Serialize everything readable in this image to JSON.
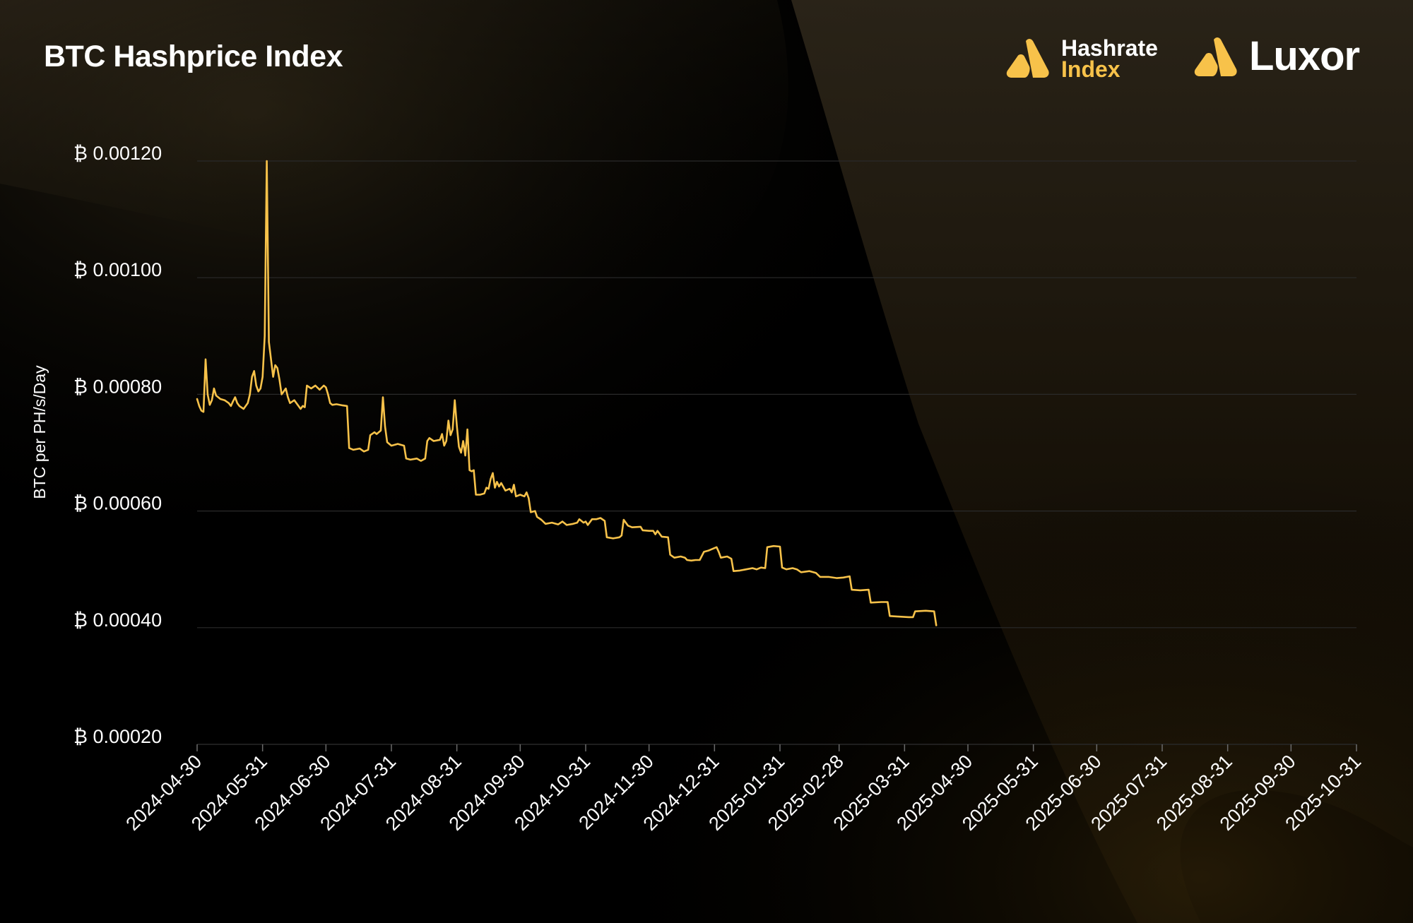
{
  "header": {
    "title": "BTC Hashprice Index"
  },
  "logos": {
    "hashrate_index_line1": "Hashrate",
    "hashrate_index_line2": "Index",
    "luxor": "Luxor"
  },
  "colors": {
    "background": "#000000",
    "line": "#f7c24a",
    "accent": "#f7c24a",
    "grid": "#2a2a2a",
    "text": "#ffffff"
  },
  "chart_data": {
    "type": "line",
    "title": "BTC Hashprice Index",
    "ylabel": "BTC per PH/s/Day",
    "xlabel": "",
    "ylim": [
      0.0002,
      0.0012
    ],
    "y_ticks": [
      0.0012,
      0.001,
      0.0008,
      0.0006,
      0.0004,
      0.0002
    ],
    "y_tick_labels": [
      "₿ 0.00120",
      "₿ 0.00100",
      "₿ 0.00080",
      "₿ 0.00060",
      "₿ 0.00040",
      "₿ 0.00020"
    ],
    "x_range": [
      "2024-04-30",
      "2025-10-31"
    ],
    "x_tick_labels": [
      "2024-04-30",
      "2024-05-31",
      "2024-06-30",
      "2024-07-31",
      "2024-08-31",
      "2024-09-30",
      "2024-10-31",
      "2024-11-30",
      "2024-12-31",
      "2025-01-31",
      "2025-02-28",
      "2025-03-31",
      "2025-04-30",
      "2025-05-31",
      "2025-06-30",
      "2025-07-31",
      "2025-08-31",
      "2025-09-30",
      "2025-10-31"
    ],
    "grid": "horizontal",
    "legend": "none",
    "series": [
      {
        "points": [
          [
            "2024-04-30",
            0.000792
          ],
          [
            "2024-05-01",
            0.00078
          ],
          [
            "2024-05-02",
            0.000772
          ],
          [
            "2024-05-03",
            0.00077
          ],
          [
            "2024-05-04",
            0.00086
          ],
          [
            "2024-05-05",
            0.0008
          ],
          [
            "2024-05-06",
            0.000782
          ],
          [
            "2024-05-07",
            0.00079
          ],
          [
            "2024-05-08",
            0.00081
          ],
          [
            "2024-05-09",
            0.000798
          ],
          [
            "2024-05-10",
            0.000795
          ],
          [
            "2024-05-11",
            0.000792
          ],
          [
            "2024-05-13",
            0.00079
          ],
          [
            "2024-05-15",
            0.000785
          ],
          [
            "2024-05-16",
            0.00078
          ],
          [
            "2024-05-17",
            0.000788
          ],
          [
            "2024-05-18",
            0.000795
          ],
          [
            "2024-05-19",
            0.000785
          ],
          [
            "2024-05-20",
            0.00078
          ],
          [
            "2024-05-22",
            0.000775
          ],
          [
            "2024-05-24",
            0.000785
          ],
          [
            "2024-05-25",
            0.0008
          ],
          [
            "2024-05-26",
            0.00083
          ],
          [
            "2024-05-27",
            0.00084
          ],
          [
            "2024-05-28",
            0.000815
          ],
          [
            "2024-05-29",
            0.000805
          ],
          [
            "2024-05-30",
            0.00081
          ],
          [
            "2024-05-31",
            0.00083
          ],
          [
            "2024-06-01",
            0.0009
          ],
          [
            "2024-06-02",
            0.0012
          ],
          [
            "2024-06-03",
            0.00089
          ],
          [
            "2024-06-04",
            0.00086
          ],
          [
            "2024-06-05",
            0.00083
          ],
          [
            "2024-06-06",
            0.00085
          ],
          [
            "2024-06-07",
            0.000845
          ],
          [
            "2024-06-08",
            0.000825
          ],
          [
            "2024-06-09",
            0.0008
          ],
          [
            "2024-06-10",
            0.000805
          ],
          [
            "2024-06-11",
            0.00081
          ],
          [
            "2024-06-12",
            0.000795
          ],
          [
            "2024-06-13",
            0.000785
          ],
          [
            "2024-06-15",
            0.00079
          ],
          [
            "2024-06-17",
            0.00078
          ],
          [
            "2024-06-18",
            0.000775
          ],
          [
            "2024-06-19",
            0.00078
          ],
          [
            "2024-06-20",
            0.000778
          ],
          [
            "2024-06-21",
            0.000815
          ],
          [
            "2024-06-23",
            0.00081
          ],
          [
            "2024-06-25",
            0.000815
          ],
          [
            "2024-06-27",
            0.000808
          ],
          [
            "2024-06-29",
            0.000815
          ],
          [
            "2024-06-30",
            0.000812
          ],
          [
            "2024-07-01",
            0.0008
          ],
          [
            "2024-07-02",
            0.000785
          ],
          [
            "2024-07-03",
            0.000782
          ],
          [
            "2024-07-05",
            0.000783
          ],
          [
            "2024-07-08",
            0.000781
          ],
          [
            "2024-07-10",
            0.00078
          ],
          [
            "2024-07-11",
            0.000708
          ],
          [
            "2024-07-13",
            0.000705
          ],
          [
            "2024-07-16",
            0.000707
          ],
          [
            "2024-07-18",
            0.000702
          ],
          [
            "2024-07-20",
            0.000705
          ],
          [
            "2024-07-21",
            0.00073
          ],
          [
            "2024-07-23",
            0.000735
          ],
          [
            "2024-07-24",
            0.000732
          ],
          [
            "2024-07-26",
            0.000738
          ],
          [
            "2024-07-27",
            0.000795
          ],
          [
            "2024-07-28",
            0.000745
          ],
          [
            "2024-07-29",
            0.000718
          ],
          [
            "2024-07-31",
            0.000712
          ],
          [
            "2024-08-03",
            0.000715
          ],
          [
            "2024-08-06",
            0.000712
          ],
          [
            "2024-08-07",
            0.00069
          ],
          [
            "2024-08-09",
            0.000688
          ],
          [
            "2024-08-12",
            0.00069
          ],
          [
            "2024-08-14",
            0.000686
          ],
          [
            "2024-08-16",
            0.00069
          ],
          [
            "2024-08-17",
            0.00072
          ],
          [
            "2024-08-18",
            0.000725
          ],
          [
            "2024-08-20",
            0.00072
          ],
          [
            "2024-08-23",
            0.000722
          ],
          [
            "2024-08-24",
            0.000732
          ],
          [
            "2024-08-25",
            0.000712
          ],
          [
            "2024-08-26",
            0.00072
          ],
          [
            "2024-08-27",
            0.000755
          ],
          [
            "2024-08-28",
            0.00073
          ],
          [
            "2024-08-29",
            0.00074
          ],
          [
            "2024-08-30",
            0.00079
          ],
          [
            "2024-08-31",
            0.000745
          ],
          [
            "2024-09-01",
            0.00071
          ],
          [
            "2024-09-02",
            0.0007
          ],
          [
            "2024-09-03",
            0.00072
          ],
          [
            "2024-09-04",
            0.000695
          ],
          [
            "2024-09-05",
            0.00074
          ],
          [
            "2024-09-06",
            0.00067
          ],
          [
            "2024-09-07",
            0.000668
          ],
          [
            "2024-09-08",
            0.00067
          ],
          [
            "2024-09-09",
            0.000628
          ],
          [
            "2024-09-11",
            0.000628
          ],
          [
            "2024-09-13",
            0.00063
          ],
          [
            "2024-09-14",
            0.00064
          ],
          [
            "2024-09-15",
            0.000638
          ],
          [
            "2024-09-16",
            0.000655
          ],
          [
            "2024-09-17",
            0.000665
          ],
          [
            "2024-09-18",
            0.00064
          ],
          [
            "2024-09-19",
            0.00065
          ],
          [
            "2024-09-20",
            0.000642
          ],
          [
            "2024-09-21",
            0.000648
          ],
          [
            "2024-09-23",
            0.000635
          ],
          [
            "2024-09-25",
            0.000638
          ],
          [
            "2024-09-26",
            0.000632
          ],
          [
            "2024-09-27",
            0.000645
          ],
          [
            "2024-09-28",
            0.000625
          ],
          [
            "2024-09-30",
            0.000628
          ],
          [
            "2024-10-02",
            0.000625
          ],
          [
            "2024-10-03",
            0.000632
          ],
          [
            "2024-10-04",
            0.000622
          ],
          [
            "2024-10-05",
            0.000598
          ],
          [
            "2024-10-07",
            0.0006
          ],
          [
            "2024-10-08",
            0.00059
          ],
          [
            "2024-10-10",
            0.000585
          ],
          [
            "2024-10-12",
            0.000578
          ],
          [
            "2024-10-15",
            0.00058
          ],
          [
            "2024-10-18",
            0.000577
          ],
          [
            "2024-10-20",
            0.000582
          ],
          [
            "2024-10-22",
            0.000576
          ],
          [
            "2024-10-25",
            0.000578
          ],
          [
            "2024-10-27",
            0.00058
          ],
          [
            "2024-10-28",
            0.000586
          ],
          [
            "2024-10-30",
            0.00058
          ],
          [
            "2024-10-31",
            0.000582
          ],
          [
            "2024-11-01",
            0.000576
          ],
          [
            "2024-11-03",
            0.000586
          ],
          [
            "2024-11-05",
            0.000586
          ],
          [
            "2024-11-07",
            0.000588
          ],
          [
            "2024-11-09",
            0.000583
          ],
          [
            "2024-11-10",
            0.000555
          ],
          [
            "2024-11-13",
            0.000553
          ],
          [
            "2024-11-16",
            0.000555
          ],
          [
            "2024-11-17",
            0.000558
          ],
          [
            "2024-11-18",
            0.000585
          ],
          [
            "2024-11-20",
            0.000575
          ],
          [
            "2024-11-22",
            0.000572
          ],
          [
            "2024-11-26",
            0.000573
          ],
          [
            "2024-11-27",
            0.000567
          ],
          [
            "2024-11-30",
            0.000566
          ],
          [
            "2024-12-02",
            0.000566
          ],
          [
            "2024-12-03",
            0.00056
          ],
          [
            "2024-12-04",
            0.000566
          ],
          [
            "2024-12-06",
            0.000556
          ],
          [
            "2024-12-09",
            0.000555
          ],
          [
            "2024-12-10",
            0.000525
          ],
          [
            "2024-12-12",
            0.00052
          ],
          [
            "2024-12-15",
            0.000522
          ],
          [
            "2024-12-17",
            0.00052
          ],
          [
            "2024-12-18",
            0.000516
          ],
          [
            "2024-12-20",
            0.000515
          ],
          [
            "2024-12-22",
            0.000516
          ],
          [
            "2024-12-24",
            0.000516
          ],
          [
            "2024-12-26",
            0.00053
          ],
          [
            "2024-12-28",
            0.000532
          ],
          [
            "2024-12-30",
            0.000535
          ],
          [
            "2025-01-01",
            0.000538
          ],
          [
            "2025-01-02",
            0.00053
          ],
          [
            "2025-01-03",
            0.00052
          ],
          [
            "2025-01-06",
            0.000522
          ],
          [
            "2025-01-08",
            0.000518
          ],
          [
            "2025-01-09",
            0.000497
          ],
          [
            "2025-01-12",
            0.000498
          ],
          [
            "2025-01-15",
            0.0005
          ],
          [
            "2025-01-18",
            0.000502
          ],
          [
            "2025-01-20",
            0.0005
          ],
          [
            "2025-01-22",
            0.000503
          ],
          [
            "2025-01-24",
            0.000502
          ],
          [
            "2025-01-25",
            0.000538
          ],
          [
            "2025-01-28",
            0.00054
          ],
          [
            "2025-01-31",
            0.000539
          ],
          [
            "2025-02-01",
            0.000503
          ],
          [
            "2025-02-03",
            0.0005
          ],
          [
            "2025-02-06",
            0.000502
          ],
          [
            "2025-02-08",
            0.0005
          ],
          [
            "2025-02-10",
            0.000495
          ],
          [
            "2025-02-14",
            0.000497
          ],
          [
            "2025-02-17",
            0.000494
          ],
          [
            "2025-02-19",
            0.000487
          ],
          [
            "2025-02-23",
            0.000487
          ],
          [
            "2025-02-27",
            0.000485
          ],
          [
            "2025-03-02",
            0.000486
          ],
          [
            "2025-03-05",
            0.000488
          ],
          [
            "2025-03-06",
            0.000465
          ],
          [
            "2025-03-10",
            0.000464
          ],
          [
            "2025-03-14",
            0.000465
          ],
          [
            "2025-03-15",
            0.000443
          ],
          [
            "2025-03-20",
            0.000444
          ],
          [
            "2025-03-23",
            0.000444
          ],
          [
            "2025-03-24",
            0.00042
          ],
          [
            "2025-03-28",
            0.000419
          ],
          [
            "2025-04-02",
            0.000418
          ],
          [
            "2025-04-04",
            0.000418
          ],
          [
            "2025-04-05",
            0.000428
          ],
          [
            "2025-04-10",
            0.000429
          ],
          [
            "2025-04-14",
            0.000428
          ],
          [
            "2025-04-15",
            0.000404
          ]
        ]
      }
    ]
  }
}
